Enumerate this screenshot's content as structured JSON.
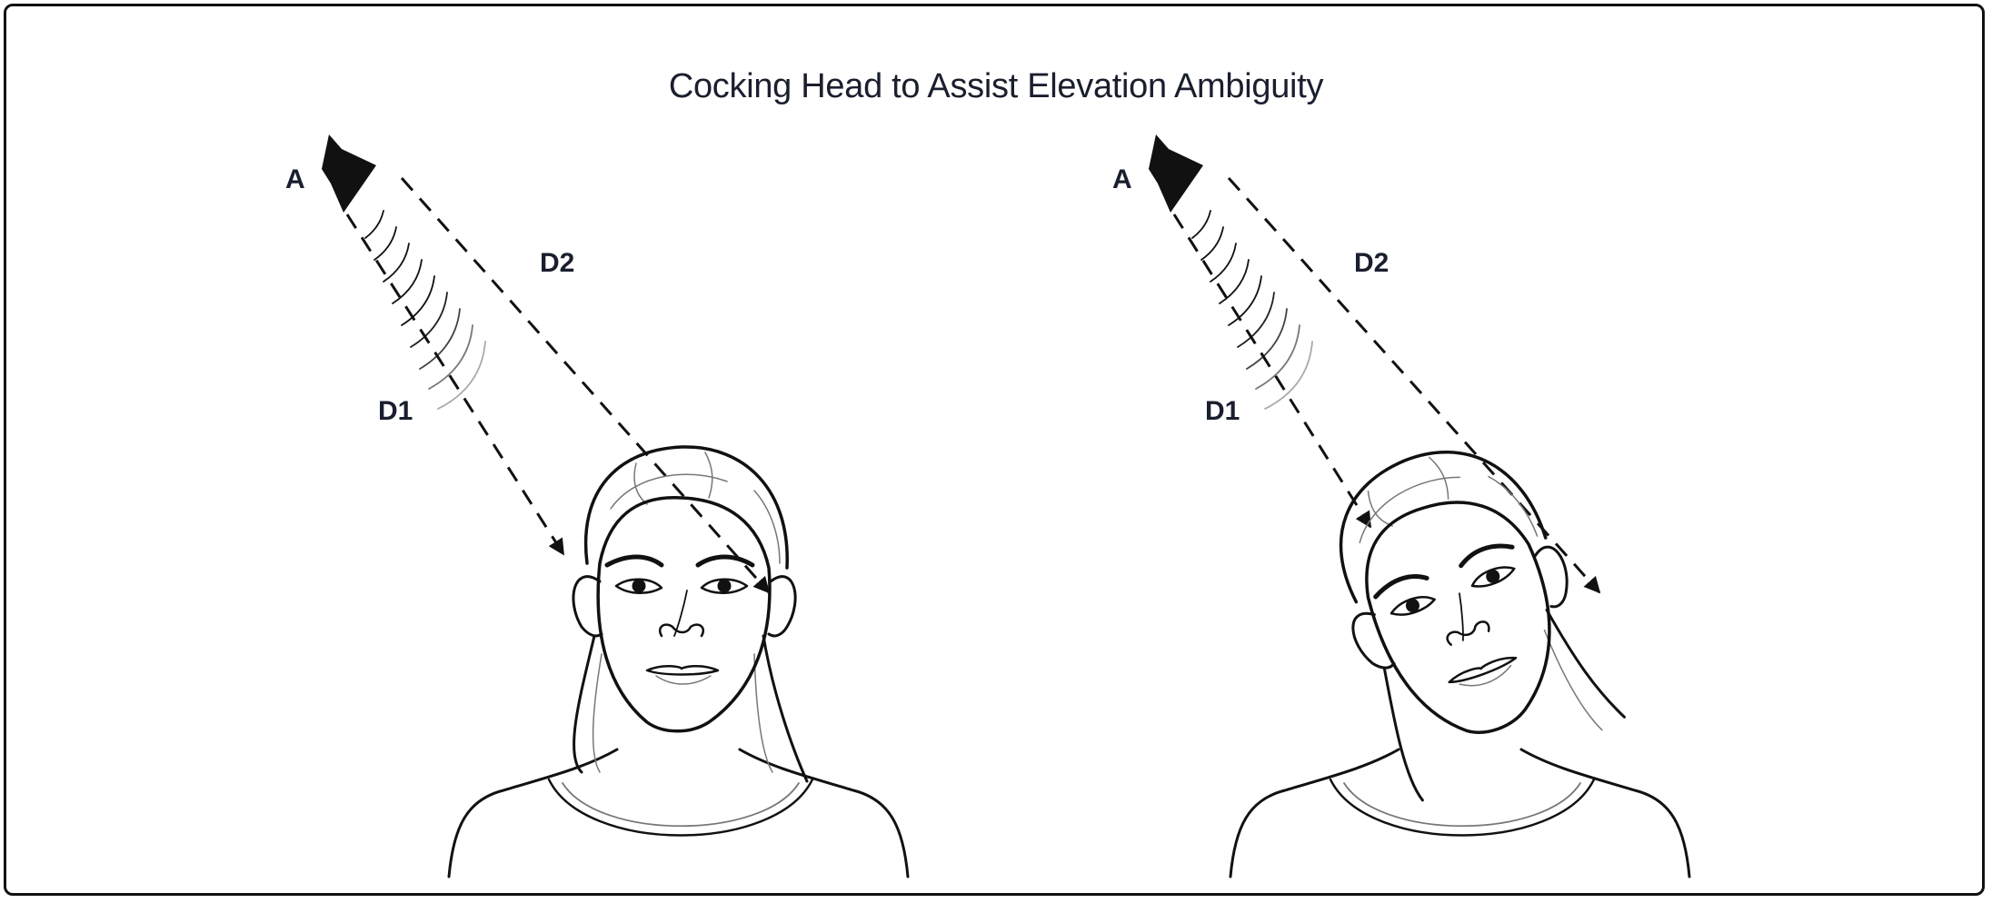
{
  "figure": {
    "title": "Cocking Head to Assist Elevation Ambiguity",
    "panels": [
      {
        "source_label": "A",
        "d1_label": "D1",
        "d2_label": "D2",
        "pose": "upright"
      },
      {
        "source_label": "A",
        "d1_label": "D1",
        "d2_label": "D2",
        "pose": "tilted"
      }
    ]
  }
}
